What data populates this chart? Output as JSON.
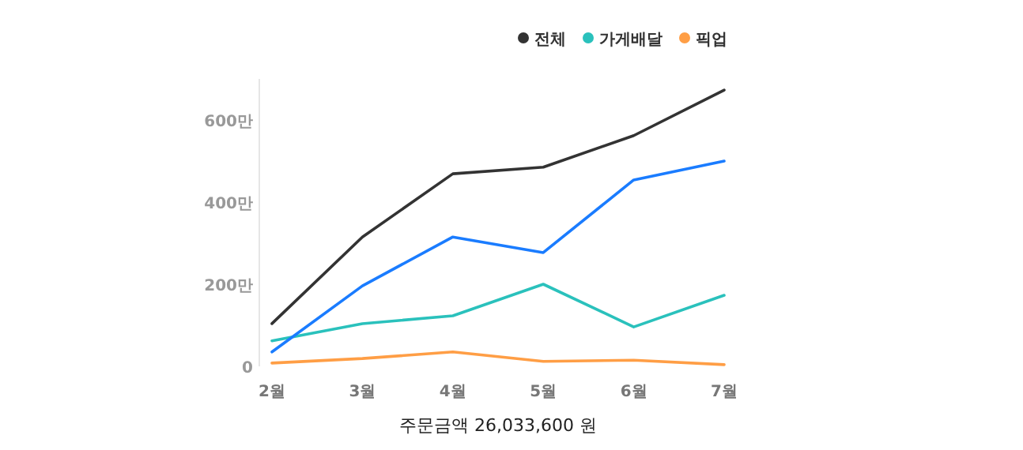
{
  "chart_data": {
    "type": "line",
    "categories": [
      "2월",
      "3월",
      "4월",
      "5월",
      "6월",
      "7월"
    ],
    "series": [
      {
        "name": "전체",
        "color": "#333333",
        "values": [
          104,
          315,
          469,
          485,
          562,
          673
        ]
      },
      {
        "name": "가게배달",
        "color": "#2ac1bc",
        "values": [
          62,
          104,
          123,
          200,
          96,
          173
        ]
      },
      {
        "name": "픽업",
        "color": "#ff9e45",
        "values": [
          8,
          19,
          35,
          12,
          15,
          4
        ]
      },
      {
        "color": "#1a7cff",
        "values": [
          35,
          196,
          315,
          277,
          454,
          500
        ]
      }
    ],
    "ylim": [
      0,
      700
    ],
    "yticks": [
      {
        "value": 0,
        "label": "0"
      },
      {
        "value": 200,
        "label": "200만"
      },
      {
        "value": 400,
        "label": "400만"
      },
      {
        "value": 600,
        "label": "600만"
      }
    ],
    "grid": false,
    "legend": "top right",
    "marker": "none",
    "annotations": [
      "주문금액 26,033,600 원"
    ]
  }
}
